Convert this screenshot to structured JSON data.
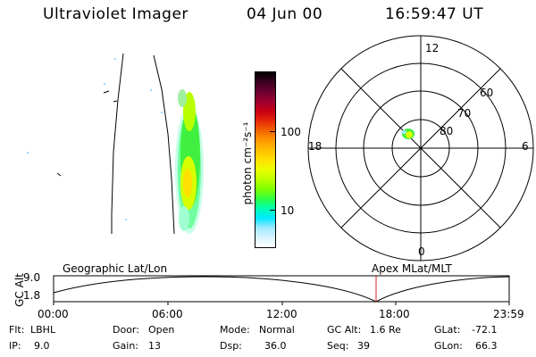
{
  "header": {
    "title": "Ultraviolet Imager",
    "date": "04 Jun 00",
    "time": "16:59:47 UT"
  },
  "colorbar": {
    "label": "photon cm⁻²s⁻¹",
    "ticks": [
      "100",
      "10"
    ],
    "colors": [
      "#000000",
      "#3a0020",
      "#6b0032",
      "#9c0030",
      "#c80014",
      "#e6280a",
      "#f26400",
      "#ff9800",
      "#ffbe00",
      "#ffe000",
      "#ecff00",
      "#bcff00",
      "#80ff00",
      "#30ff40",
      "#00ffb0",
      "#00e8ff",
      "#a0e8ff",
      "#d8f4ff",
      "#ffffff"
    ]
  },
  "polar": {
    "mlt_labels": {
      "top": "12",
      "bottom": "0",
      "left": "18",
      "right": "6"
    },
    "lat_labels": [
      "60",
      "70",
      "80"
    ]
  },
  "timeline": {
    "left_title": "Geographic Lat/Lon",
    "right_title": "Apex MLat/MLT",
    "y_axis_label": "GC Alt",
    "y_ticks": [
      "9.0",
      "1.8"
    ],
    "x_ticks": [
      "00:00",
      "06:00",
      "12:00",
      "18:00",
      "23:59"
    ],
    "current_marker_color": "#e02020"
  },
  "status": {
    "filter": {
      "label": "Flt:",
      "value": "LBHL"
    },
    "ip": {
      "label": "IP:",
      "value": "9.0"
    },
    "door": {
      "label": "Door:",
      "value": "Open"
    },
    "gain": {
      "label": "Gain:",
      "value": "13"
    },
    "mode": {
      "label": "Mode:",
      "value": "Normal"
    },
    "dsp": {
      "label": "Dsp:",
      "value": "36.0"
    },
    "gc_alt": {
      "label": "GC Alt:",
      "value": "1.6 Re"
    },
    "seq": {
      "label": "Seq:",
      "value": "39"
    },
    "glat": {
      "label": "GLat:",
      "value": "-72.1"
    },
    "glon": {
      "label": "GLon:",
      "value": "66.3"
    }
  }
}
